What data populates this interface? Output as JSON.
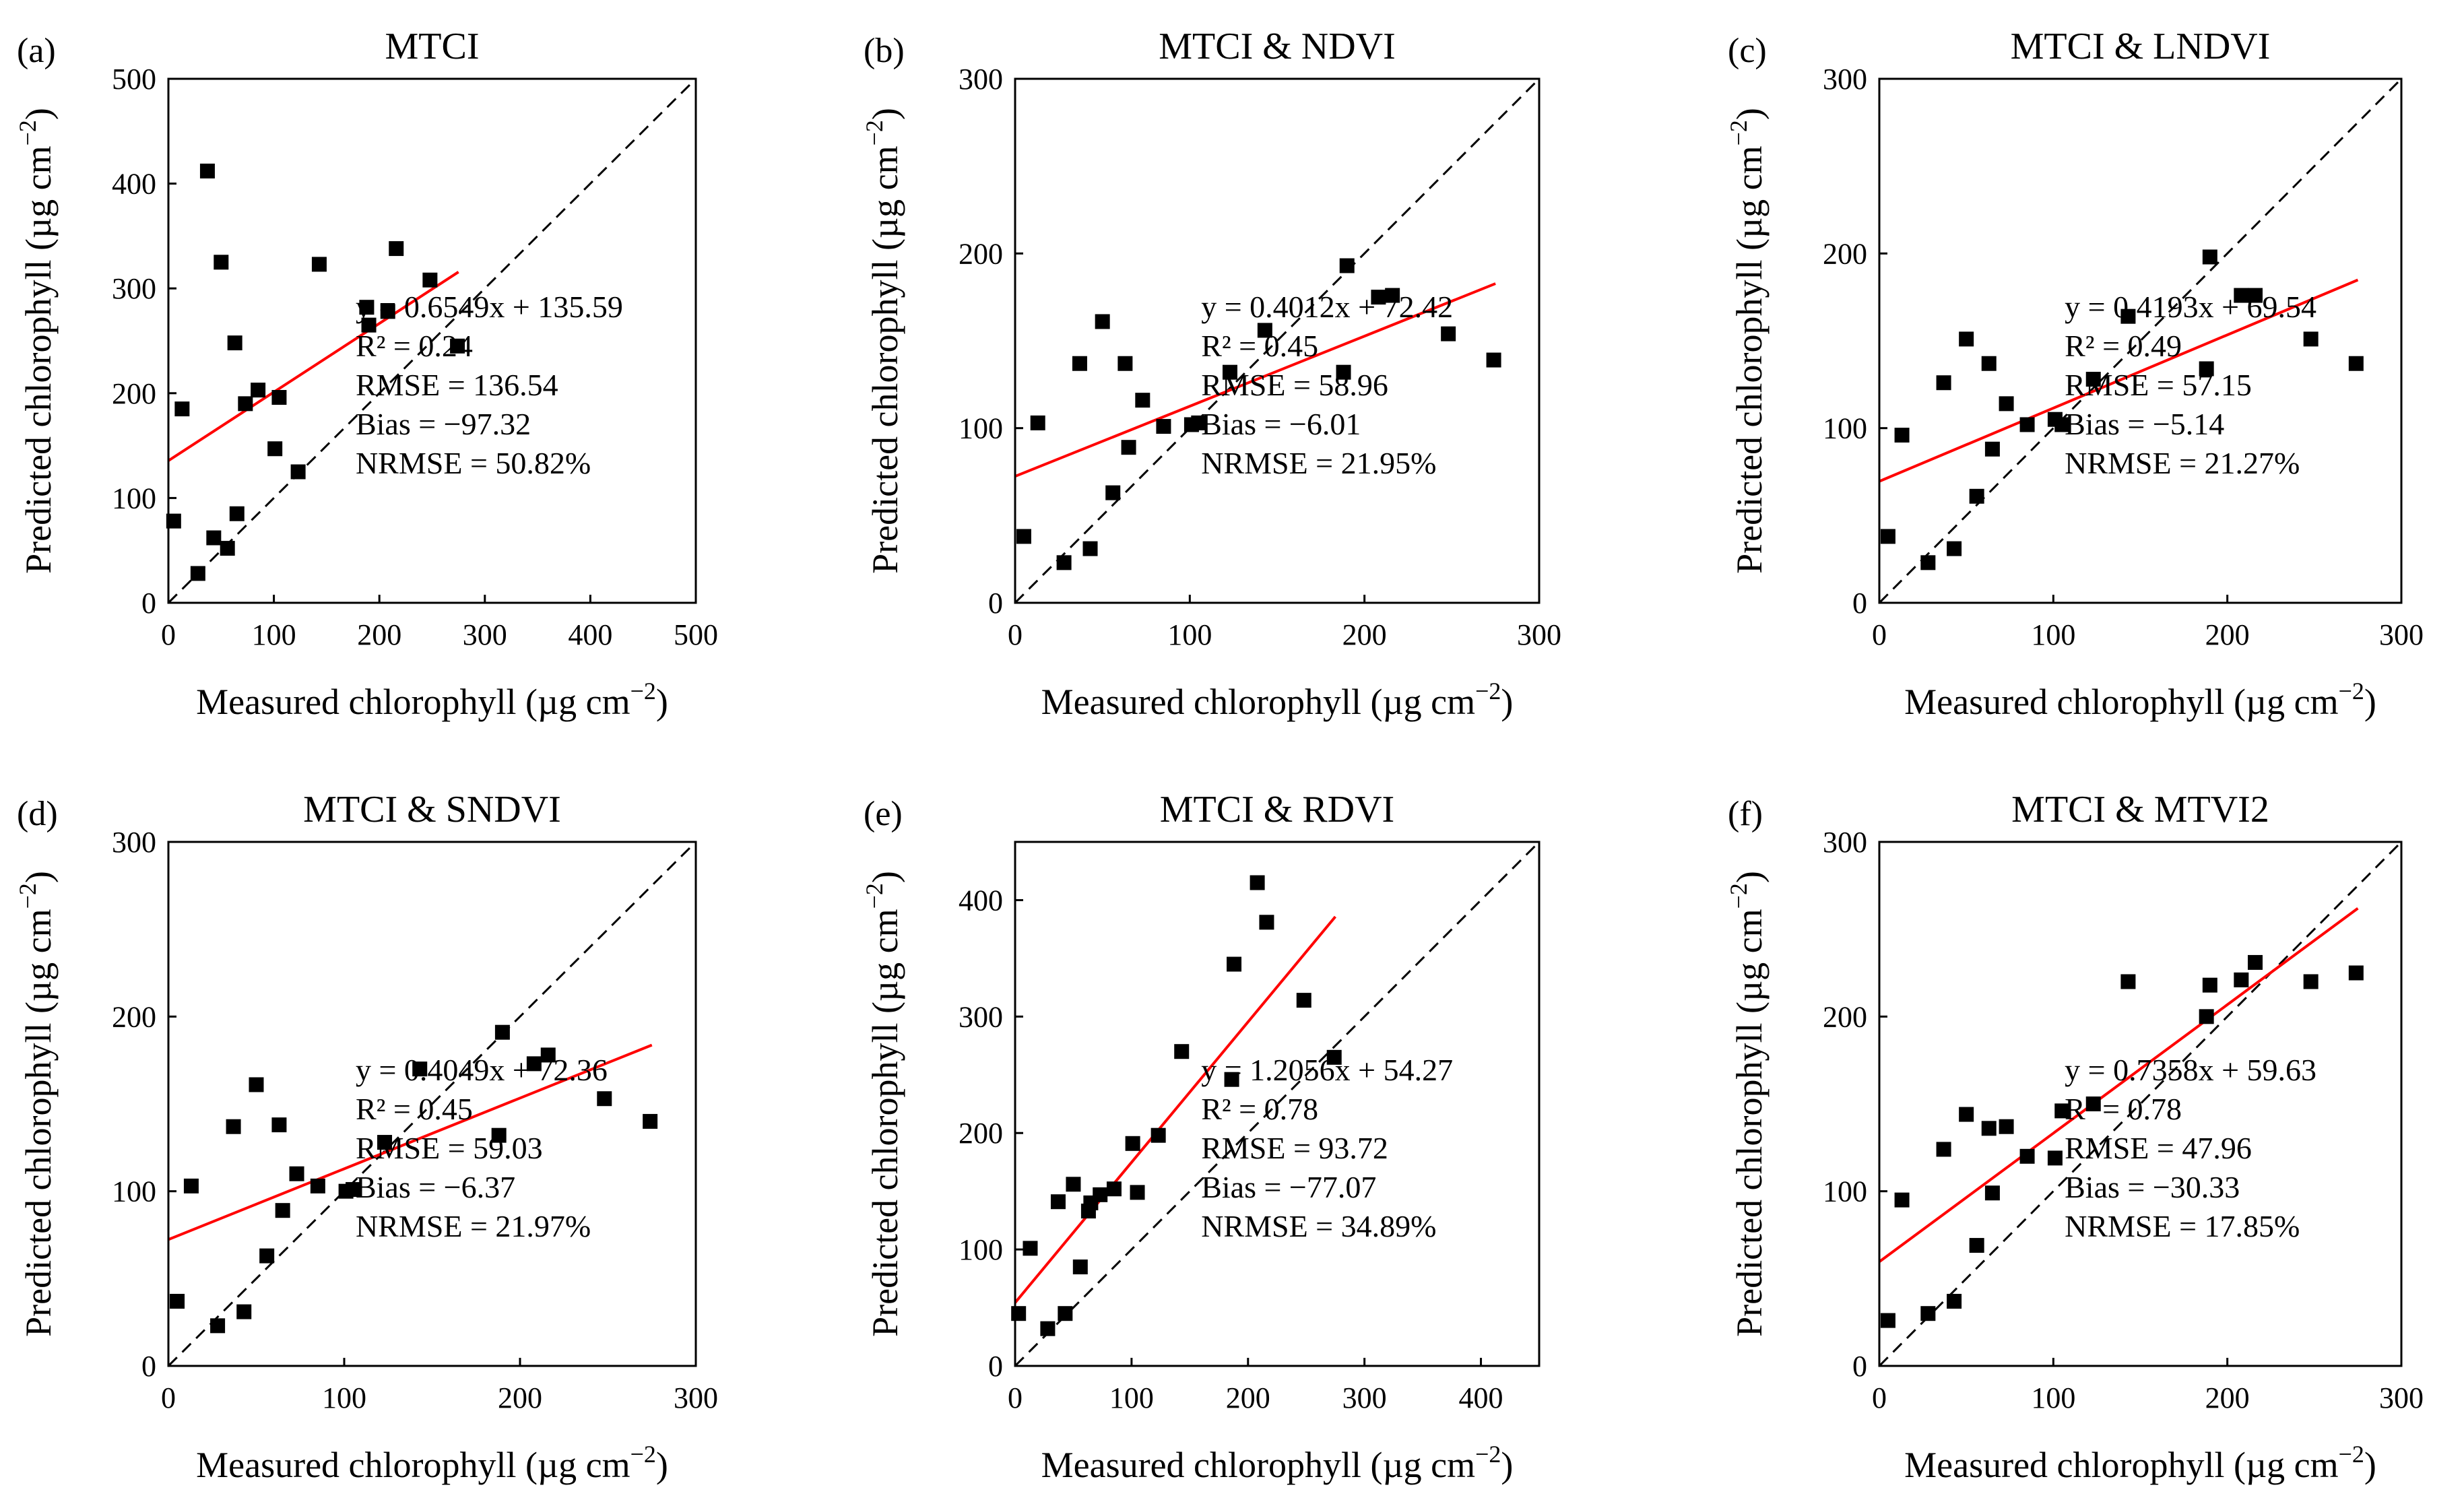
{
  "figure": {
    "x_axis_label": "Measured chlorophyll (µg cm",
    "y_axis_label": "Predicted chlorophyll (µg cm",
    "unit_superscript": "−2",
    "unit_close": ")"
  },
  "chart_data": [
    {
      "type": "scatter",
      "panel": "(a)",
      "title": "MTCI",
      "xlabel": "Measured chlorophyll (µg cm−2)",
      "ylabel": "Predicted chlorophyll (µg cm−2)",
      "xlim": [
        0,
        500
      ],
      "ylim": [
        0,
        500
      ],
      "xticks": [
        0,
        100,
        200,
        300,
        400,
        500
      ],
      "yticks": [
        0,
        100,
        200,
        300,
        400,
        500
      ],
      "points": [
        [
          5,
          78
        ],
        [
          13,
          185
        ],
        [
          28,
          28
        ],
        [
          37,
          412
        ],
        [
          43,
          62
        ],
        [
          50,
          325
        ],
        [
          56,
          52
        ],
        [
          63,
          248
        ],
        [
          65,
          85
        ],
        [
          73,
          190
        ],
        [
          85,
          203
        ],
        [
          101,
          147
        ],
        [
          105,
          196
        ],
        [
          123,
          125
        ],
        [
          143,
          323
        ],
        [
          188,
          282
        ],
        [
          190,
          265
        ],
        [
          208,
          278
        ],
        [
          216,
          338
        ],
        [
          248,
          308
        ],
        [
          274,
          245
        ]
      ],
      "fit_line": {
        "slope": 0.6549,
        "intercept": 135.59,
        "x_range": [
          0,
          275
        ],
        "color": "#ff0000"
      },
      "identity_line": true,
      "stats": [
        "y = 0.6549x + 135.59",
        "R² = 0.24",
        "RMSE = 136.54",
        "Bias = −97.32",
        "NRMSE = 50.82%"
      ]
    },
    {
      "type": "scatter",
      "panel": "(b)",
      "title": "MTCI & NDVI",
      "xlabel": "Measured chlorophyll (µg cm−2)",
      "ylabel": "Predicted chlorophyll (µg cm−2)",
      "xlim": [
        0,
        300
      ],
      "ylim": [
        0,
        300
      ],
      "xticks": [
        0,
        100,
        200,
        300
      ],
      "yticks": [
        0,
        100,
        200,
        300
      ],
      "points": [
        [
          5,
          38
        ],
        [
          13,
          103
        ],
        [
          28,
          23
        ],
        [
          37,
          137
        ],
        [
          43,
          31
        ],
        [
          50,
          161
        ],
        [
          56,
          63
        ],
        [
          63,
          137
        ],
        [
          65,
          89
        ],
        [
          73,
          116
        ],
        [
          85,
          101
        ],
        [
          101,
          102
        ],
        [
          105,
          103
        ],
        [
          123,
          132
        ],
        [
          143,
          156
        ],
        [
          188,
          132
        ],
        [
          190,
          193
        ],
        [
          208,
          175
        ],
        [
          216,
          176
        ],
        [
          248,
          154
        ],
        [
          274,
          139
        ]
      ],
      "fit_line": {
        "slope": 0.4012,
        "intercept": 72.42,
        "x_range": [
          0,
          275
        ],
        "color": "#ff0000"
      },
      "identity_line": true,
      "stats": [
        "y = 0.4012x + 72.42",
        "R² = 0.45",
        "RMSE = 58.96",
        "Bias = −6.01",
        "NRMSE = 21.95%"
      ]
    },
    {
      "type": "scatter",
      "panel": "(c)",
      "title": "MTCI & LNDVI",
      "xlabel": "Measured chlorophyll (µg cm−2)",
      "ylabel": "Predicted chlorophyll (µg cm−2)",
      "xlim": [
        0,
        300
      ],
      "ylim": [
        0,
        300
      ],
      "xticks": [
        0,
        100,
        200,
        300
      ],
      "yticks": [
        0,
        100,
        200,
        300
      ],
      "points": [
        [
          5,
          38
        ],
        [
          13,
          96
        ],
        [
          28,
          23
        ],
        [
          37,
          126
        ],
        [
          43,
          31
        ],
        [
          50,
          151
        ],
        [
          56,
          61
        ],
        [
          63,
          137
        ],
        [
          65,
          88
        ],
        [
          73,
          114
        ],
        [
          85,
          102
        ],
        [
          101,
          105
        ],
        [
          105,
          102
        ],
        [
          123,
          128
        ],
        [
          143,
          164
        ],
        [
          188,
          134
        ],
        [
          190,
          198
        ],
        [
          208,
          176
        ],
        [
          216,
          176
        ],
        [
          248,
          151
        ],
        [
          274,
          137
        ]
      ],
      "fit_line": {
        "slope": 0.4193,
        "intercept": 69.54,
        "x_range": [
          0,
          275
        ],
        "color": "#ff0000"
      },
      "identity_line": true,
      "stats": [
        "y = 0.4193x + 69.54",
        "R² = 0.49",
        "RMSE = 57.15",
        "Bias = −5.14",
        "NRMSE = 21.27%"
      ]
    },
    {
      "type": "scatter",
      "panel": "(d)",
      "title": "MTCI & SNDVI",
      "xlabel": "Measured chlorophyll (µg cm−2)",
      "ylabel": "Predicted chlorophyll (µg cm−2)",
      "xlim": [
        0,
        300
      ],
      "ylim": [
        0,
        300
      ],
      "xticks": [
        0,
        100,
        200,
        300
      ],
      "yticks": [
        0,
        100,
        200,
        300
      ],
      "points": [
        [
          5,
          37
        ],
        [
          13,
          103
        ],
        [
          28,
          23
        ],
        [
          37,
          137
        ],
        [
          43,
          31
        ],
        [
          50,
          161
        ],
        [
          56,
          63
        ],
        [
          63,
          138
        ],
        [
          65,
          89
        ],
        [
          73,
          110
        ],
        [
          85,
          103
        ],
        [
          101,
          100
        ],
        [
          105,
          101
        ],
        [
          123,
          128
        ],
        [
          143,
          170
        ],
        [
          188,
          132
        ],
        [
          190,
          191
        ],
        [
          208,
          173
        ],
        [
          216,
          178
        ],
        [
          248,
          153
        ],
        [
          274,
          140
        ]
      ],
      "fit_line": {
        "slope": 0.4049,
        "intercept": 72.36,
        "x_range": [
          0,
          275
        ],
        "color": "#ff0000"
      },
      "identity_line": true,
      "stats": [
        "y = 0.4049x + 72.36",
        "R² = 0.45",
        "RMSE = 59.03",
        "Bias = −6.37",
        "NRMSE = 21.97%"
      ]
    },
    {
      "type": "scatter",
      "panel": "(e)",
      "title": "MTCI & RDVI",
      "xlabel": "Measured chlorophyll (µg cm−2)",
      "ylabel": "Predicted chlorophyll (µg cm−2)",
      "xlim": [
        0,
        450
      ],
      "ylim": [
        0,
        450
      ],
      "xticks": [
        0,
        100,
        200,
        300,
        400
      ],
      "yticks": [
        0,
        100,
        200,
        300,
        400
      ],
      "points": [
        [
          3,
          45
        ],
        [
          13,
          101
        ],
        [
          28,
          32
        ],
        [
          37,
          141
        ],
        [
          43,
          45
        ],
        [
          50,
          156
        ],
        [
          56,
          85
        ],
        [
          63,
          133
        ],
        [
          65,
          140
        ],
        [
          73,
          147
        ],
        [
          85,
          152
        ],
        [
          101,
          191
        ],
        [
          105,
          149
        ],
        [
          123,
          198
        ],
        [
          143,
          270
        ],
        [
          188,
          345
        ],
        [
          186,
          246
        ],
        [
          208,
          415
        ],
        [
          216,
          381
        ],
        [
          248,
          314
        ],
        [
          274,
          265
        ]
      ],
      "fit_line": {
        "slope": 1.2056,
        "intercept": 54.27,
        "x_range": [
          0,
          275
        ],
        "color": "#ff0000"
      },
      "identity_line": true,
      "stats": [
        "y = 1.2056x + 54.27",
        "R² = 0.78",
        "RMSE = 93.72",
        "Bias = −77.07",
        "NRMSE = 34.89%"
      ]
    },
    {
      "type": "scatter",
      "panel": "(f)",
      "title": "MTCI & MTVI2",
      "xlabel": "Measured chlorophyll (µg cm−2)",
      "ylabel": "Predicted chlorophyll (µg cm−2)",
      "xlim": [
        0,
        300
      ],
      "ylim": [
        0,
        300
      ],
      "xticks": [
        0,
        100,
        200,
        300
      ],
      "yticks": [
        0,
        100,
        200,
        300
      ],
      "points": [
        [
          5,
          26
        ],
        [
          13,
          95
        ],
        [
          28,
          30
        ],
        [
          37,
          124
        ],
        [
          43,
          37
        ],
        [
          50,
          144
        ],
        [
          56,
          69
        ],
        [
          63,
          136
        ],
        [
          65,
          99
        ],
        [
          73,
          137
        ],
        [
          85,
          120
        ],
        [
          101,
          119
        ],
        [
          105,
          146
        ],
        [
          123,
          150
        ],
        [
          143,
          220
        ],
        [
          188,
          200
        ],
        [
          190,
          218
        ],
        [
          208,
          221
        ],
        [
          216,
          231
        ],
        [
          248,
          220
        ],
        [
          274,
          225
        ]
      ],
      "fit_line": {
        "slope": 0.7358,
        "intercept": 59.63,
        "x_range": [
          0,
          275
        ],
        "color": "#ff0000"
      },
      "identity_line": true,
      "stats": [
        "y = 0.7358x + 59.63",
        "R² = 0.78",
        "RMSE = 47.96",
        "Bias = −30.33",
        "NRMSE = 17.85%"
      ]
    }
  ]
}
